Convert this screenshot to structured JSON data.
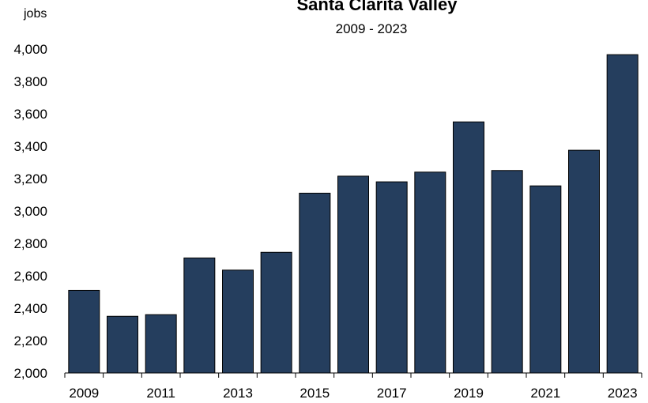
{
  "chart_data": {
    "type": "bar",
    "title": "Santa Clarita Valley",
    "subtitle": "2009 - 2023",
    "ylabel": "jobs",
    "xlabel": "",
    "categories": [
      "2009",
      "2010",
      "2011",
      "2012",
      "2013",
      "2014",
      "2015",
      "2016",
      "2017",
      "2018",
      "2019",
      "2020",
      "2021",
      "2022",
      "2023"
    ],
    "x_tick_labels": [
      "2009",
      "",
      "2011",
      "",
      "2013",
      "",
      "2015",
      "",
      "2017",
      "",
      "2019",
      "",
      "2021",
      "",
      "2023"
    ],
    "values": [
      2510,
      2350,
      2360,
      2710,
      2635,
      2745,
      3110,
      3215,
      3180,
      3240,
      3550,
      3250,
      3155,
      3375,
      3965
    ],
    "ylim": [
      2000,
      4000
    ],
    "y_ticks": [
      2000,
      2200,
      2400,
      2600,
      2800,
      3000,
      3200,
      3400,
      3600,
      3800,
      4000
    ],
    "y_tick_labels": [
      "2,000",
      "2,200",
      "2,400",
      "2,600",
      "2,800",
      "3,000",
      "3,200",
      "3,400",
      "3,600",
      "3,800",
      "4,000"
    ],
    "grid": false,
    "legend": "none",
    "bar_color": "#253E5E"
  }
}
